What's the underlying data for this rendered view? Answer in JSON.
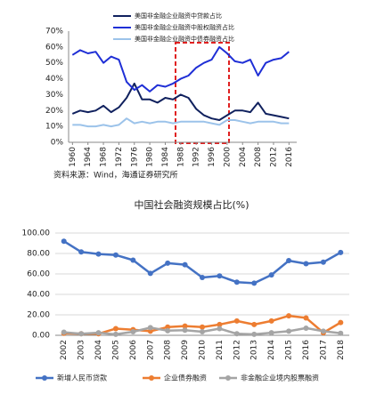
{
  "chart_data": [
    {
      "type": "line",
      "source": "资料来源：Wind，海通证券研究所",
      "x": [
        1960,
        1962,
        1964,
        1966,
        1968,
        1970,
        1972,
        1974,
        1976,
        1978,
        1980,
        1982,
        1984,
        1986,
        1988,
        1990,
        1992,
        1994,
        1996,
        1998,
        2000,
        2002,
        2004,
        2006,
        2008,
        2010,
        2012,
        2014,
        2016
      ],
      "xlim": [
        1959,
        2018
      ],
      "xticks": [
        1960,
        1964,
        1968,
        1972,
        1976,
        1980,
        1984,
        1988,
        1992,
        1996,
        2000,
        2004,
        2008,
        2012,
        2016
      ],
      "ylim": [
        0,
        70
      ],
      "yticks": [
        {
          "value": 0,
          "label": "0%"
        },
        {
          "value": 10,
          "label": "10%"
        },
        {
          "value": 20,
          "label": "20%"
        },
        {
          "value": 30,
          "label": "30%"
        },
        {
          "value": 40,
          "label": "40%"
        },
        {
          "value": 50,
          "label": "50%"
        },
        {
          "value": 60,
          "label": "60%"
        },
        {
          "value": 70,
          "label": "70%"
        }
      ],
      "grid": false,
      "series": [
        {
          "name": "美国非金融企业融资中贷款占比",
          "color": "#10215e",
          "values": [
            18,
            20,
            19,
            20,
            23,
            19,
            22,
            28,
            37,
            27,
            27,
            25,
            28,
            27,
            30,
            28,
            21,
            17,
            15,
            14,
            17,
            20,
            20,
            19,
            25,
            18,
            17,
            16,
            15
          ]
        },
        {
          "name": "美国非金融企业融资中股权融资占比",
          "color": "#1f2fd6",
          "values": [
            55,
            58,
            56,
            57,
            50,
            54,
            52,
            38,
            33,
            36,
            32,
            36,
            35,
            37,
            40,
            42,
            47,
            50,
            52,
            60,
            56,
            51,
            50,
            52,
            42,
            50,
            52,
            53,
            57
          ]
        },
        {
          "name": "美国非金融企业融资中债券融资占比",
          "color": "#9cc3ea",
          "values": [
            11,
            11,
            10,
            10,
            11,
            10,
            11,
            15,
            12,
            13,
            12,
            13,
            13,
            12,
            13,
            13,
            13,
            13,
            12,
            11,
            14,
            14,
            13,
            12,
            13,
            13,
            13,
            12,
            12
          ]
        }
      ]
    },
    {
      "type": "line",
      "title": "中国社会融资规模占比(%)",
      "categories": [
        "2002",
        "2003",
        "2004",
        "2005",
        "2006",
        "2007",
        "2008",
        "2009",
        "2010",
        "2011",
        "2012",
        "2013",
        "2014",
        "2015",
        "2016",
        "2017",
        "2018"
      ],
      "ylim": [
        0,
        100
      ],
      "yticks": [
        {
          "value": 0,
          "label": "0.00"
        },
        {
          "value": 20,
          "label": "20.00"
        },
        {
          "value": 40,
          "label": "40.00"
        },
        {
          "value": 60,
          "label": "60.00"
        },
        {
          "value": 80,
          "label": "80.00"
        },
        {
          "value": 100,
          "label": "100.00"
        }
      ],
      "grid": true,
      "series": [
        {
          "name": "新增人民币贷款",
          "color": "#4472c4",
          "values": [
            92,
            81.5,
            79.5,
            78.5,
            73.5,
            60.5,
            70.5,
            69,
            56.5,
            58,
            52,
            51,
            59,
            73,
            70,
            71.5,
            81
          ]
        },
        {
          "name": "企业债券融资",
          "color": "#ed7d31",
          "values": [
            2,
            1.5,
            1.5,
            6.5,
            5.5,
            4,
            8,
            9,
            8,
            10.5,
            14,
            10.5,
            14,
            19,
            17,
            2.5,
            12.5
          ]
        },
        {
          "name": "非金融企业境内股票融资",
          "color": "#a5a5a5",
          "values": [
            3,
            1.5,
            2.5,
            1,
            3.5,
            7.5,
            4.5,
            5,
            3.5,
            6.5,
            1.5,
            1,
            2.5,
            4,
            7,
            4,
            2
          ]
        }
      ]
    }
  ]
}
